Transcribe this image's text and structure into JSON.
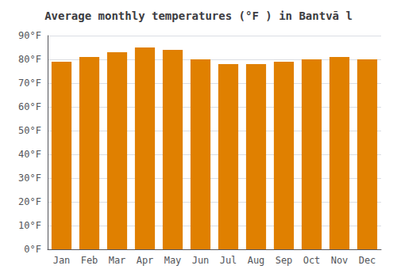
{
  "chart_data": {
    "type": "bar",
    "title": "Average monthly temperatures (°F ) in Bantvā l",
    "categories": [
      "Jan",
      "Feb",
      "Mar",
      "Apr",
      "May",
      "Jun",
      "Jul",
      "Aug",
      "Sep",
      "Oct",
      "Nov",
      "Dec"
    ],
    "values": [
      79,
      81,
      83,
      85,
      84,
      80,
      78,
      78,
      79,
      80,
      81,
      80
    ],
    "color": "#E08000",
    "ylim": [
      0,
      90
    ],
    "yticks": [
      {
        "value": 0,
        "label": "0°F"
      },
      {
        "value": 10,
        "label": "10°F"
      },
      {
        "value": 20,
        "label": "20°F"
      },
      {
        "value": 30,
        "label": "30°F"
      },
      {
        "value": 40,
        "label": "40°F"
      },
      {
        "value": 50,
        "label": "50°F"
      },
      {
        "value": 60,
        "label": "60°F"
      },
      {
        "value": 70,
        "label": "70°F"
      },
      {
        "value": 80,
        "label": "80°F"
      },
      {
        "value": 90,
        "label": "90°F"
      }
    ],
    "grid": true
  }
}
